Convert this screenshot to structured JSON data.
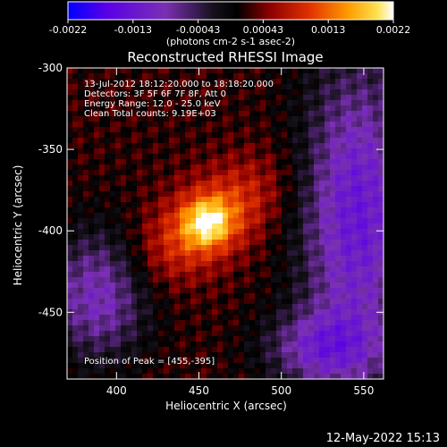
{
  "chart_data": {
    "type": "heatmap",
    "title": "Reconstructed RHESSI Image",
    "xlabel": "Heliocentric X (arcsec)",
    "ylabel": "Heliocentric Y (arcsec)",
    "xlim": [
      370,
      562
    ],
    "ylim": [
      -491,
      -300
    ],
    "x_ticks": [
      400,
      450,
      500,
      550
    ],
    "y_ticks": [
      -300,
      -350,
      -400,
      -450
    ],
    "peak": [
      455,
      -395
    ],
    "colorbar": {
      "range": [
        -0.0022,
        0.0022
      ],
      "ticks": [
        "-0.0022",
        "-0.0013",
        "-0.00043",
        "0.00043",
        "0.0013",
        "0.0022"
      ],
      "units": "(photons cm-2 s-1 asec-2)",
      "colors": [
        "#0000ff",
        "#5a00e6",
        "#7a30b4",
        "#000000",
        "#8c0000",
        "#e03000",
        "#ff9a00",
        "#ffe050",
        "#ffffff"
      ]
    },
    "annotations": [
      "13-Jul-2012 18:12:20.000 to 18:18:20.000",
      "Detectors: 3F 5F 6F 7F 8F, Att 0",
      "Energy Range: 12.0 - 25.0 keV",
      "Clean     Total counts: 9.19E+03"
    ],
    "peak_label": "Position of Peak = [455,-395]"
  },
  "footer": {
    "timestamp": "12-May-2022 15:13"
  }
}
